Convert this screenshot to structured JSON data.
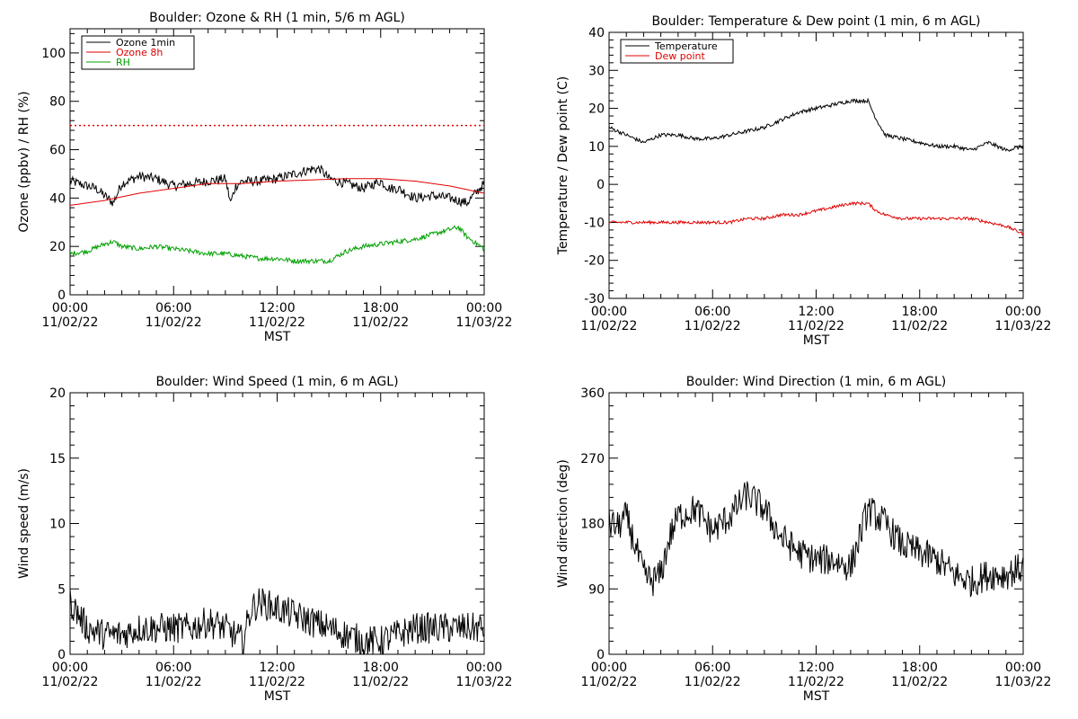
{
  "chart_data": [
    {
      "type": "line",
      "title": "Boulder: Ozone & RH (1 min, 5/6 m AGL)",
      "ylabel": "Ozone (ppbv) / RH (%)",
      "xlabel": "MST",
      "xlim": [
        0,
        24
      ],
      "ylim": [
        0,
        110
      ],
      "xticks": [
        {
          "time": "00:00",
          "date": "11/02/22"
        },
        {
          "time": "06:00",
          "date": "11/02/22"
        },
        {
          "time": "12:00",
          "date": "11/02/22"
        },
        {
          "time": "18:00",
          "date": "11/02/22"
        },
        {
          "time": "00:00",
          "date": "11/03/22"
        }
      ],
      "yticks": [
        0,
        20,
        40,
        60,
        80,
        100
      ],
      "grid": false,
      "legend_position": "top-left",
      "reference_line": {
        "y": 70,
        "color": "#e00000",
        "style": "dotted"
      },
      "series": [
        {
          "name": "Ozone 1min",
          "color": "#000000",
          "noise": 2,
          "x": [
            0,
            1,
            1.5,
            2,
            2.5,
            3,
            4,
            5,
            6,
            7,
            8,
            9,
            9.3,
            9.6,
            10,
            11,
            12,
            13,
            14,
            14.5,
            15,
            16,
            17,
            18,
            18.5,
            19,
            20,
            21,
            22,
            23,
            23.5,
            24
          ],
          "y": [
            47,
            45,
            44,
            41,
            38,
            46,
            49,
            48,
            45,
            46,
            47,
            48,
            38,
            45,
            47,
            47,
            48,
            50,
            52,
            52,
            48,
            46,
            44,
            47,
            44,
            44,
            40,
            41,
            40,
            38,
            42,
            46
          ]
        },
        {
          "name": "Ozone 8h",
          "color": "#e00000",
          "noise": 0,
          "x": [
            0,
            2,
            4,
            6,
            8,
            10,
            12,
            14,
            16,
            18,
            20,
            22,
            24
          ],
          "y": [
            37,
            39,
            42,
            44,
            46,
            46,
            47,
            47.5,
            48,
            48,
            47,
            45,
            42
          ]
        },
        {
          "name": "RH",
          "color": "#00a000",
          "noise": 1,
          "x": [
            0,
            1,
            2,
            2.5,
            3,
            4,
            5,
            6,
            7,
            8,
            9,
            10,
            11,
            12,
            13,
            14,
            15,
            16,
            17,
            18,
            19,
            20,
            21,
            22,
            22.5,
            23,
            24
          ],
          "y": [
            17,
            18,
            21,
            22,
            20,
            19,
            20,
            19,
            18,
            17,
            17,
            16,
            15,
            15,
            14,
            14,
            14,
            18,
            20,
            21,
            22,
            23,
            25,
            27,
            28,
            24,
            19
          ]
        }
      ]
    },
    {
      "type": "line",
      "title": "Boulder: Temperature & Dew point (1 min, 6 m AGL)",
      "ylabel": "Temperature / Dew point (C)",
      "xlabel": "MST",
      "xlim": [
        0,
        24
      ],
      "ylim": [
        -30,
        40
      ],
      "xticks": [
        {
          "time": "00:00",
          "date": "11/02/22"
        },
        {
          "time": "06:00",
          "date": "11/02/22"
        },
        {
          "time": "12:00",
          "date": "11/02/22"
        },
        {
          "time": "18:00",
          "date": "11/02/22"
        },
        {
          "time": "00:00",
          "date": "11/03/22"
        }
      ],
      "yticks": [
        -30,
        -20,
        -10,
        0,
        10,
        20,
        30,
        40
      ],
      "grid": false,
      "legend_position": "top-left",
      "series": [
        {
          "name": "Temperature",
          "color": "#000000",
          "noise": 0.5,
          "x": [
            0,
            1,
            2,
            3,
            4,
            5,
            6,
            7,
            8,
            9,
            10,
            11,
            12,
            13,
            14,
            15,
            15.5,
            16,
            17,
            18,
            19,
            20,
            21,
            22,
            23,
            24
          ],
          "y": [
            15,
            13,
            11,
            13,
            13,
            12,
            12,
            13,
            14,
            15,
            17,
            19,
            20,
            21,
            22,
            22,
            17,
            13,
            12,
            11,
            10,
            10,
            9,
            11,
            9,
            10
          ]
        },
        {
          "name": "Dew point",
          "color": "#e00000",
          "noise": 0.4,
          "x": [
            0,
            1,
            2,
            3,
            4,
            5,
            6,
            7,
            8,
            9,
            10,
            11,
            12,
            13,
            14,
            15,
            15.5,
            16,
            17,
            18,
            19,
            20,
            21,
            22,
            23,
            24
          ],
          "y": [
            -10,
            -10,
            -10,
            -10,
            -10,
            -10,
            -10,
            -10,
            -9,
            -9,
            -8,
            -8,
            -7,
            -6,
            -5,
            -5,
            -7,
            -8,
            -9,
            -9,
            -9,
            -9,
            -9,
            -10,
            -11,
            -13
          ]
        }
      ]
    },
    {
      "type": "line",
      "title": "Boulder: Wind Speed (1 min, 6 m AGL)",
      "ylabel": "Wind speed (m/s)",
      "xlabel": "MST",
      "xlim": [
        0,
        24
      ],
      "ylim": [
        0,
        20
      ],
      "xticks": [
        {
          "time": "00:00",
          "date": "11/02/22"
        },
        {
          "time": "06:00",
          "date": "11/02/22"
        },
        {
          "time": "12:00",
          "date": "11/02/22"
        },
        {
          "time": "18:00",
          "date": "11/02/22"
        },
        {
          "time": "00:00",
          "date": "11/03/22"
        }
      ],
      "yticks": [
        0,
        5,
        10,
        15,
        20
      ],
      "grid": false,
      "series": [
        {
          "color": "#000000",
          "noise": 1.2,
          "x": [
            0,
            0.5,
            1,
            2,
            3,
            4,
            5,
            6,
            7,
            8,
            9,
            10,
            10.5,
            11,
            12,
            13,
            14,
            15,
            16,
            17,
            18,
            19,
            20,
            21,
            22,
            23,
            24
          ],
          "y": [
            4,
            3,
            2,
            1.5,
            1.5,
            2,
            2,
            2,
            2,
            2.5,
            2,
            1,
            3.5,
            4,
            3.5,
            3,
            2.5,
            2,
            1.5,
            1,
            1,
            1.5,
            2,
            2,
            2,
            2,
            2
          ]
        }
      ]
    },
    {
      "type": "line",
      "title": "Boulder: Wind Direction (1 min, 6 m AGL)",
      "ylabel": "Wind direction (deg)",
      "xlabel": "MST",
      "xlim": [
        0,
        24
      ],
      "ylim": [
        0,
        360
      ],
      "xticks": [
        {
          "time": "00:00",
          "date": "11/02/22"
        },
        {
          "time": "06:00",
          "date": "11/02/22"
        },
        {
          "time": "12:00",
          "date": "11/02/22"
        },
        {
          "time": "18:00",
          "date": "11/02/22"
        },
        {
          "time": "00:00",
          "date": "11/03/22"
        }
      ],
      "yticks": [
        0,
        90,
        180,
        270,
        360
      ],
      "grid": false,
      "series": [
        {
          "color": "#000000",
          "noise": 22,
          "x": [
            0,
            0.5,
            1,
            1.5,
            2,
            2.5,
            3,
            3.5,
            4,
            5,
            6,
            7,
            8,
            9,
            9.5,
            10,
            10.5,
            11,
            12,
            13,
            14,
            15,
            16,
            17,
            18,
            19,
            20,
            21,
            22,
            23,
            24
          ],
          "y": [
            180,
            175,
            190,
            150,
            110,
            100,
            110,
            160,
            190,
            200,
            170,
            190,
            220,
            200,
            180,
            160,
            150,
            140,
            130,
            130,
            120,
            200,
            180,
            150,
            140,
            130,
            110,
            100,
            110,
            110,
            120
          ]
        }
      ]
    }
  ]
}
